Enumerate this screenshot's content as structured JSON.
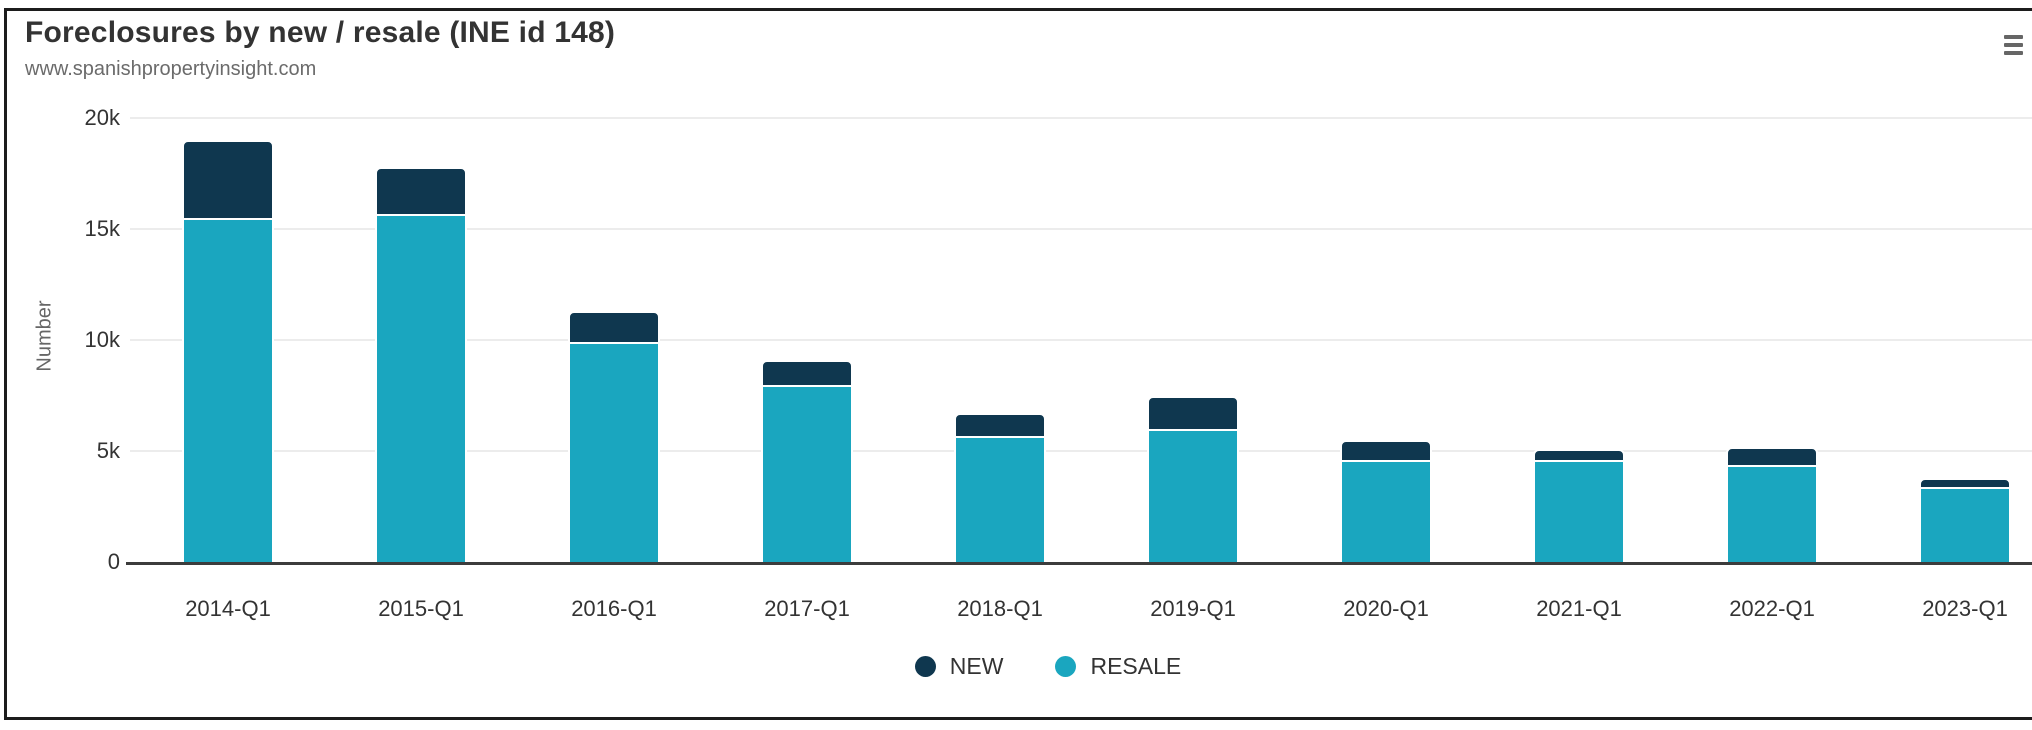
{
  "header": {
    "title": "Foreclosures by new / resale (INE id 148)",
    "subtitle": "www.spanishpropertyinsight.com"
  },
  "export_menu": {
    "icon": "hamburger-menu-icon"
  },
  "chart_data": {
    "type": "bar",
    "stacked": true,
    "title": "Foreclosures by new / resale (INE id 148)",
    "subtitle": "www.spanishpropertyinsight.com",
    "xlabel": "",
    "ylabel": "Number",
    "ylim": [
      0,
      20000
    ],
    "ytick_values": [
      0,
      5000,
      10000,
      15000,
      20000
    ],
    "ytick_labels": [
      "0",
      "5k",
      "10k",
      "15k",
      "20k"
    ],
    "grid": "horizontal",
    "legend_position": "bottom-center",
    "categories": [
      "2014-Q1",
      "2015-Q1",
      "2016-Q1",
      "2017-Q1",
      "2018-Q1",
      "2019-Q1",
      "2020-Q1",
      "2021-Q1",
      "2022-Q1",
      "2023-Q1"
    ],
    "series": [
      {
        "name": "NEW",
        "color": "#0f374f",
        "stack_order": "top",
        "values": [
          3600,
          2200,
          1500,
          1200,
          1100,
          1600,
          1000,
          600,
          900,
          500
        ]
      },
      {
        "name": "RESALE",
        "color": "#1aa6bf",
        "stack_order": "bottom",
        "values": [
          15400,
          15600,
          9800,
          7900,
          5600,
          5900,
          4500,
          4500,
          4300,
          3300
        ]
      }
    ]
  }
}
